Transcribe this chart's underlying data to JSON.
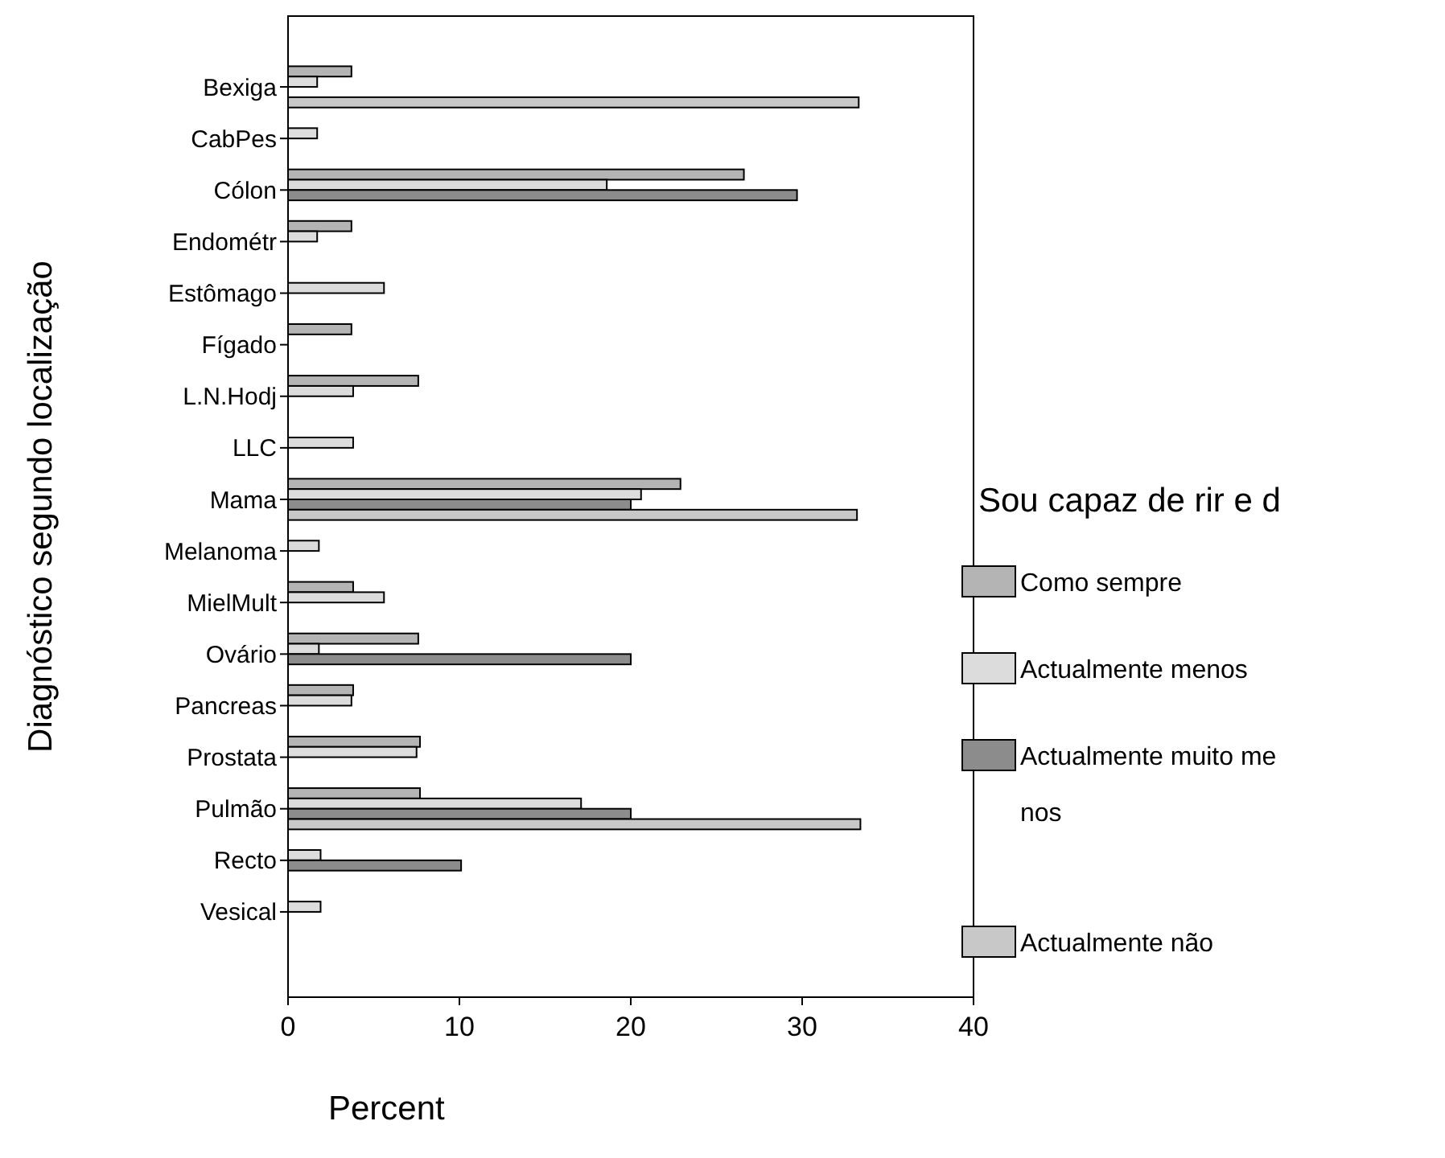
{
  "chart_data": {
    "type": "bar",
    "orientation": "horizontal",
    "xlabel": "Percent",
    "ylabel": "Diagnóstico segundo localização",
    "legend_title": "Sou capaz de rir e d",
    "legend": "right",
    "categories": [
      "Bexiga",
      "CabPes",
      "Cólon",
      "Endométr",
      "Estômago",
      "Fígado",
      "L.N.Hodj",
      "LLC",
      "Mama",
      "Melanoma",
      "MielMult",
      "Ovário",
      "Pancreas",
      "Prostata",
      "Pulmão",
      "Recto",
      "Vesical"
    ],
    "series": [
      {
        "name": "Como sempre",
        "color": "#b4b4b4",
        "values": [
          3.7,
          null,
          26.6,
          3.7,
          null,
          3.7,
          7.6,
          null,
          22.9,
          null,
          3.8,
          7.6,
          3.8,
          7.7,
          7.7,
          null,
          null
        ]
      },
      {
        "name": "Actualmente menos",
        "color": "#dcdcdc",
        "values": [
          1.7,
          1.7,
          18.6,
          1.7,
          5.6,
          null,
          3.8,
          3.8,
          20.6,
          1.8,
          5.6,
          1.8,
          3.7,
          7.5,
          17.1,
          1.9,
          1.9
        ]
      },
      {
        "name": "Actualmente muito menos",
        "color": "#8c8c8c",
        "values": [
          null,
          null,
          29.7,
          null,
          null,
          null,
          null,
          null,
          20,
          null,
          null,
          20,
          null,
          null,
          20,
          10.1,
          null
        ]
      },
      {
        "name": "Actualmente não",
        "color": "#c8c8c8",
        "values": [
          33.3,
          null,
          null,
          null,
          null,
          null,
          null,
          null,
          33.2,
          null,
          null,
          null,
          null,
          null,
          33.4,
          null,
          null
        ]
      }
    ],
    "xlim": [
      0,
      40
    ],
    "xticks": [
      0,
      10,
      20,
      30,
      40
    ],
    "grid": false
  }
}
